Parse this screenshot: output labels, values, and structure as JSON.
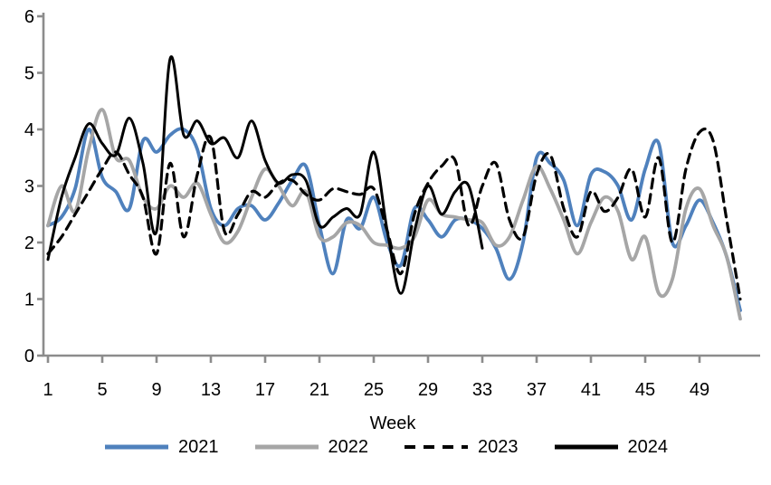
{
  "chart_data": {
    "type": "line",
    "title": "",
    "xlabel": "Week",
    "ylabel": "",
    "xlim": [
      1,
      52
    ],
    "ylim": [
      0,
      6
    ],
    "x_ticks": [
      1,
      5,
      9,
      13,
      17,
      21,
      25,
      29,
      33,
      37,
      41,
      45,
      49
    ],
    "y_ticks": [
      0,
      1,
      2,
      3,
      4,
      5,
      6
    ],
    "grid": false,
    "legend_position": "bottom",
    "axis_color": "#8c8c8c",
    "text_color": "#000000",
    "smoothed": true,
    "series": [
      {
        "name": "2021",
        "color": "#4F81BD",
        "style": "solid",
        "values": [
          2.3,
          2.45,
          2.95,
          4.0,
          3.15,
          2.9,
          2.6,
          3.8,
          3.6,
          3.9,
          4.0,
          3.65,
          2.6,
          2.3,
          2.6,
          2.65,
          2.4,
          2.7,
          3.1,
          3.35,
          2.3,
          1.45,
          2.4,
          2.25,
          2.8,
          2.0,
          1.6,
          2.6,
          2.4,
          2.1,
          2.4,
          2.4,
          2.25,
          1.9,
          1.35,
          2.0,
          3.5,
          3.4,
          3.1,
          2.3,
          3.2,
          3.25,
          3.0,
          2.4,
          3.3,
          3.75,
          2.0,
          2.3,
          2.75,
          2.35,
          1.75,
          0.8
        ]
      },
      {
        "name": "2022",
        "color": "#A6A6A6",
        "style": "solid",
        "values": [
          2.3,
          3.0,
          2.55,
          3.65,
          4.35,
          3.5,
          3.45,
          2.8,
          2.6,
          3.0,
          2.8,
          3.05,
          2.5,
          2.0,
          2.2,
          2.8,
          3.3,
          3.0,
          2.65,
          2.9,
          2.1,
          2.1,
          2.35,
          2.3,
          2.0,
          1.95,
          1.9,
          2.1,
          2.75,
          2.5,
          2.45,
          2.4,
          2.35,
          1.95,
          2.1,
          2.75,
          3.35,
          2.95,
          2.4,
          1.8,
          2.35,
          2.8,
          2.55,
          1.7,
          2.1,
          1.1,
          1.35,
          2.6,
          2.95,
          2.3,
          1.75,
          0.65
        ]
      },
      {
        "name": "2023",
        "color": "#000000",
        "style": "dashed",
        "values": [
          1.8,
          2.1,
          2.5,
          2.9,
          3.3,
          3.6,
          3.2,
          2.8,
          1.8,
          3.4,
          2.1,
          3.2,
          3.85,
          2.2,
          2.5,
          2.9,
          2.8,
          3.05,
          3.1,
          2.85,
          2.75,
          2.95,
          2.9,
          2.85,
          2.95,
          2.2,
          1.45,
          2.5,
          3.05,
          3.35,
          3.45,
          2.3,
          3.0,
          3.4,
          2.4,
          2.1,
          3.2,
          3.55,
          2.6,
          2.1,
          2.9,
          2.55,
          2.8,
          3.3,
          2.45,
          3.5,
          2.0,
          3.3,
          3.95,
          3.8,
          2.4,
          1.0
        ]
      },
      {
        "name": "2024",
        "color": "#000000",
        "style": "solid",
        "values": [
          1.7,
          2.8,
          3.5,
          4.1,
          3.75,
          3.55,
          4.2,
          3.4,
          2.2,
          5.25,
          3.9,
          4.15,
          3.75,
          3.85,
          3.5,
          4.15,
          3.45,
          3.05,
          3.2,
          3.1,
          2.3,
          2.45,
          2.6,
          2.5,
          3.6,
          2.2,
          1.1,
          2.2,
          3.0,
          2.5,
          2.9,
          3.0,
          1.9
        ]
      }
    ]
  }
}
